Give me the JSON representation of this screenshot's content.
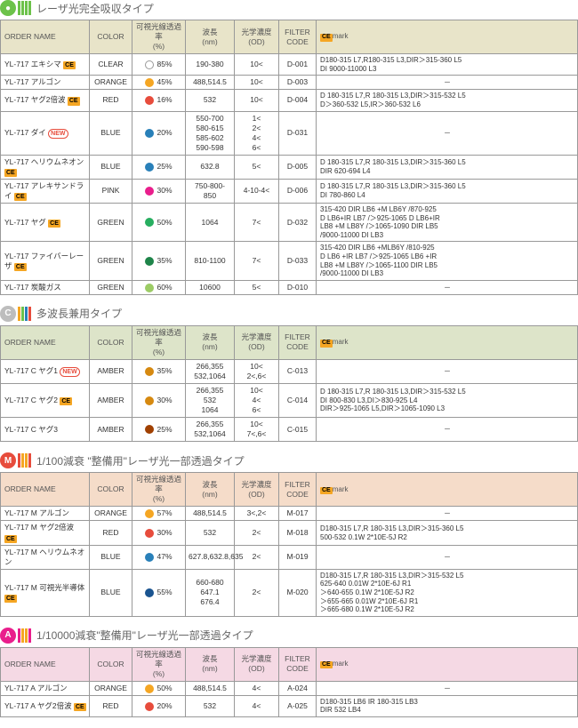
{
  "sections": [
    {
      "badge_text": "●",
      "badge_color": "#6cc24a",
      "bars": [
        "#6cc24a",
        "#6cc24a",
        "#6cc24a",
        "#6cc24a"
      ],
      "title": "レーザ光完全吸収タイプ",
      "header_bg": "#e8e4c9",
      "columns": [
        "ORDER NAME",
        "COLOR",
        "可視光線透過率\n(%)",
        "波長\n(nm)",
        "光学濃度\n(OD)",
        "FILTER\nCODE",
        "mark"
      ],
      "ce_header": true,
      "rows": [
        {
          "order": "YL-717 エキシマ",
          "ce_order": true,
          "new": false,
          "color": "CLEAR",
          "dot": "#ffffff",
          "dot_border": "#999",
          "trans": "85%",
          "wave": "190-380",
          "od": "10<",
          "filter": "D-001",
          "ce": "D180-315 L7,R180-315 L3,DIR＞315-360 L5\nDI 9000-11000 L3"
        },
        {
          "order": "YL-717 アルゴン",
          "ce_order": false,
          "new": false,
          "color": "ORANGE",
          "dot": "#f5a623",
          "trans": "45%",
          "wave": "488,514.5",
          "od": "10<",
          "filter": "D-003",
          "ce": "－"
        },
        {
          "order": "YL-717 ヤグ2倍波",
          "ce_order": true,
          "new": false,
          "color": "RED",
          "dot": "#e74c3c",
          "trans": "16%",
          "wave": "532",
          "od": "10<",
          "filter": "D-004",
          "ce": "D 180-315 L7,R 180-315 L3,DIR＞315-532 L5\nD＞360-532 L5,IR＞360-532 L6"
        },
        {
          "order": "YL-717 ダイ",
          "ce_order": false,
          "new": true,
          "color": "BLUE",
          "dot": "#2980b9",
          "trans": "20%",
          "wave": "550-700\n580-615\n585-602\n590-598",
          "od": "1<\n2<\n4<\n6<",
          "filter": "D-031",
          "ce": "－"
        },
        {
          "order": "YL-717 ヘリウムネオン",
          "ce_order": true,
          "new": false,
          "color": "BLUE",
          "dot": "#2980b9",
          "trans": "25%",
          "wave": "632.8",
          "od": "5<",
          "filter": "D-005",
          "ce": "D 180-315 L7,R 180-315 L3,DIR＞315-360 L5\nDIR 620-694 L4"
        },
        {
          "order": "YL-717 アレキサンドライ",
          "ce_order": true,
          "new": false,
          "color": "PINK",
          "dot": "#e91e8c",
          "trans": "30%",
          "wave": "750-800-850",
          "od": "4-10-4<",
          "filter": "D-006",
          "ce": "D 180-315 L7,R 180-315 L3,DIR＞315-360 L5\nDI 780-860 L4"
        },
        {
          "order": "YL-717 ヤグ",
          "ce_order": true,
          "new": false,
          "color": "GREEN",
          "dot": "#27ae60",
          "trans": "50%",
          "wave": "1064",
          "od": "7<",
          "filter": "D-032",
          "ce": "315-420 DIR LB6 +M LB6Y /870-925\nD LB6+IR LB7 /＞925-1065 D LB6+IR\nLB8 +M LB8Y /＞1065-1090 DIR LB5\n/9000-11000 DI LB3"
        },
        {
          "order": "YL-717 ファイバーレーザ",
          "ce_order": true,
          "new": false,
          "color": "GREEN",
          "dot": "#1e8449",
          "trans": "35%",
          "wave": "810-1100",
          "od": "7<",
          "filter": "D-033",
          "ce": "315-420 DIR LB6 +MLB6Y /810-925\nD LB6 +IR LB7 /＞925-1065 LB6 +IR\nLB8 +M LB8Y /＞1065-1100 DIR LB5\n/9000-11000 DI LB3"
        },
        {
          "order": "YL-717 炭酸ガス",
          "ce_order": false,
          "new": false,
          "color": "GREEN",
          "dot": "#9ccc65",
          "trans": "60%",
          "wave": "10600",
          "od": "5<",
          "filter": "D-010",
          "ce": "－"
        }
      ]
    },
    {
      "badge_text": "C",
      "badge_color": "#bdbdbd",
      "bars": [
        "#f5a623",
        "#6cc24a",
        "#2980b9",
        "#e74c3c"
      ],
      "title": "多波長兼用タイプ",
      "header_bg": "#dde4c9",
      "columns": [
        "ORDER NAME",
        "COLOR",
        "可視光線透過率\n(%)",
        "波長\n(nm)",
        "光学濃度\n(OD)",
        "FILTER\nCODE",
        "mark"
      ],
      "ce_header": true,
      "rows": [
        {
          "order": "YL-717 C ヤグ1",
          "ce_order": false,
          "new": true,
          "color": "AMBER",
          "dot": "#d68910",
          "trans": "35%",
          "wave": "266,355\n532,1064",
          "od": "10<\n2<,6<",
          "filter": "C-013",
          "ce": "－"
        },
        {
          "order": "YL-717 C ヤグ2",
          "ce_order": true,
          "new": false,
          "color": "AMBER",
          "dot": "#d68910",
          "trans": "30%",
          "wave": "266,355\n532\n1064",
          "od": "10<\n4<\n6<",
          "filter": "C-014",
          "ce": "D 180-315 L7,R 180-315  L3,DIR＞315-532 L5\nDI 800-830 L3,DI＞830-925 L4\nDIR＞925-1065 L5,DIR＞1065-1090 L3"
        },
        {
          "order": "YL-717 C ヤグ3",
          "ce_order": false,
          "new": false,
          "color": "AMBER",
          "dot": "#a04000",
          "trans": "25%",
          "wave": "266,355\n532,1064",
          "od": "10<\n7<,6<",
          "filter": "C-015",
          "ce": "－"
        }
      ]
    },
    {
      "badge_text": "M",
      "badge_color": "#e74c3c",
      "bars": [
        "#e74c3c",
        "#f5a623",
        "#f5a623",
        "#e74c3c"
      ],
      "title": "1/100減衰 \"整備用\"レーザ光一部透過タイプ",
      "header_bg": "#f5dcc9",
      "columns": [
        "ORDER NAME",
        "COLOR",
        "可視光線透過率\n(%)",
        "波長\n(nm)",
        "光学濃度\n(OD)",
        "FILTER\nCODE",
        "mark"
      ],
      "ce_header": true,
      "rows": [
        {
          "order": "YL-717 M アルゴン",
          "ce_order": false,
          "new": false,
          "color": "ORANGE",
          "dot": "#f5a623",
          "trans": "57%",
          "wave": "488,514.5",
          "od": "3<,2<",
          "filter": "M-017",
          "ce": "－"
        },
        {
          "order": "YL-717 M ヤグ2倍波",
          "ce_order": true,
          "new": false,
          "color": "RED",
          "dot": "#e74c3c",
          "trans": "30%",
          "wave": "532",
          "od": "2<",
          "filter": "M-018",
          "ce": "D180-315 L7,R 180-315 L3,DIR＞315-360 L5\n500-532 0.1W 2*10E-5J R2"
        },
        {
          "order": "YL-717 M ヘリウムネオン",
          "ce_order": false,
          "new": false,
          "color": "BLUE",
          "dot": "#2980b9",
          "trans": "47%",
          "wave": "627.8,632.8,635",
          "od": "2<",
          "filter": "M-019",
          "ce": "－"
        },
        {
          "order": "YL-717 M 可視光半導体",
          "ce_order": true,
          "new": false,
          "color": "BLUE",
          "dot": "#1a5490",
          "trans": "55%",
          "wave": "660-680\n647.1\n676.4",
          "od": "2<",
          "filter": "M-020",
          "ce": "D180-315 L7,R 180-315 L3,DIR＞315-532 L5\n625-640 0.01W 2*10E-6J R1\n＞640-655 0.1W 2*10E-5J R2\n＞655-665 0.01W 2*10E-6J R1\n＞665-680 0.1W 2*10E-5J R2"
        }
      ]
    },
    {
      "badge_text": "A",
      "badge_color": "#e91e8c",
      "bars": [
        "#e91e8c",
        "#f5a623",
        "#f5a623",
        "#e91e8c"
      ],
      "title": "1/10000減衰\"整備用\"レーザ光一部透過タイプ",
      "header_bg": "#f5d9e4",
      "columns": [
        "ORDER NAME",
        "COLOR",
        "可視光線透過率\n(%)",
        "波長\n(nm)",
        "光学濃度\n(OD)",
        "FILTER\nCODE",
        "mark"
      ],
      "ce_header": true,
      "rows": [
        {
          "order": "YL-717 A アルゴン",
          "ce_order": false,
          "new": false,
          "color": "ORANGE",
          "dot": "#f5a623",
          "trans": "50%",
          "wave": "488,514.5",
          "od": "4<",
          "filter": "A-024",
          "ce": "－"
        },
        {
          "order": "YL-717 A ヤグ2倍波",
          "ce_order": true,
          "new": false,
          "color": "RED",
          "dot": "#e74c3c",
          "trans": "20%",
          "wave": "532",
          "od": "4<",
          "filter": "A-025",
          "ce": "D180-315 LB6 IR 180-315 LB3\nDIR 532 LB4"
        }
      ]
    }
  ]
}
